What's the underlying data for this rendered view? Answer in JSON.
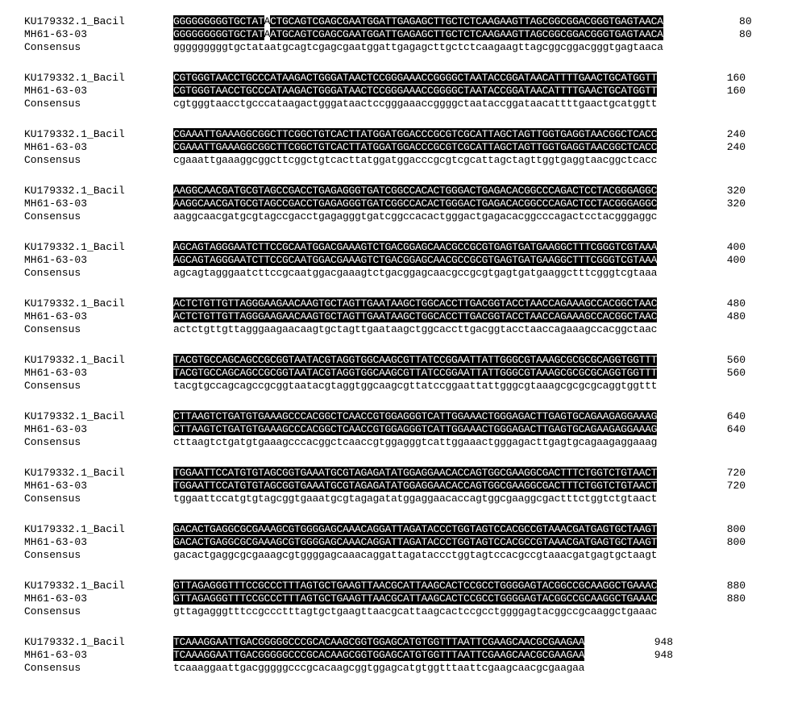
{
  "alignment": {
    "font_family": "Courier New",
    "font_size_pt": 10,
    "highlight_bg": "#000000",
    "highlight_fg": "#ffffff",
    "normal_bg": "#ffffff",
    "normal_fg": "#000000",
    "label_a": "KU179332.1_Bacil",
    "label_b": "MH61-63-03",
    "label_consensus": "Consensus",
    "point_mutation_index": 15,
    "blocks": [
      {
        "end": 80,
        "seq_a": "GGGGGGGGGTGCTATACTGCAGTCGAGCGAATGGATTGAGAGCTTGCTCTCAAGAAGTTAGCGGCGGACGGGTGAGTAACA",
        "seq_b": "GGGGGGGGGTGCTATAATGCAGTCGAGCGAATGGATTGAGAGCTTGCTCTCAAGAAGTTAGCGGCGGACGGGTGAGTAACA",
        "cons": "gggggggggtgctataatgcagtcgagcgaatggattgagagcttgctctcaagaagttagcggcggacgggtgagtaaca",
        "mismatches": [
          15
        ]
      },
      {
        "end": 160,
        "seq_a": "CGTGGGTAACCTGCCCATAAGACTGGGATAACTCCGGGAAACCGGGGCTAATACCGGATAACATTTTGAACTGCATGGTT",
        "seq_b": "CGTGGGTAACCTGCCCATAAGACTGGGATAACTCCGGGAAACCGGGGCTAATACCGGATAACATTTTGAACTGCATGGTT",
        "cons": "cgtgggtaacctgcccataagactgggataactccgggaaaccggggctaataccggataacattttgaactgcatggtt",
        "mismatches": []
      },
      {
        "end": 240,
        "seq_a": "CGAAATTGAAAGGCGGCTTCGGCTGTCACTTATGGATGGACCCGCGTCGCATTAGCTAGTTGGTGAGGTAACGGCTCACC",
        "seq_b": "CGAAATTGAAAGGCGGCTTCGGCTGTCACTTATGGATGGACCCGCGTCGCATTAGCTAGTTGGTGAGGTAACGGCTCACC",
        "cons": "cgaaattgaaaggcggcttcggctgtcacttatggatggacccgcgtcgcattagctagttggtgaggtaacggctcacc",
        "mismatches": []
      },
      {
        "end": 320,
        "seq_a": "AAGGCAACGATGCGTAGCCGACCTGAGAGGGTGATCGGCCACACTGGGACTGAGACACGGCCCAGACTCCTACGGGAGGC",
        "seq_b": "AAGGCAACGATGCGTAGCCGACCTGAGAGGGTGATCGGCCACACTGGGACTGAGACACGGCCCAGACTCCTACGGGAGGC",
        "cons": "aaggcaacgatgcgtagccgacctgagagggtgatcggccacactgggactgagacacggcccagactcctacgggaggc",
        "mismatches": []
      },
      {
        "end": 400,
        "seq_a": "AGCAGTAGGGAATCTTCCGCAATGGACGAAAGTCTGACGGAGCAACGCCGCGTGAGTGATGAAGGCTTTCGGGTCGTAAA",
        "seq_b": "AGCAGTAGGGAATCTTCCGCAATGGACGAAAGTCTGACGGAGCAACGCCGCGTGAGTGATGAAGGCTTTCGGGTCGTAAA",
        "cons": "agcagtagggaatcttccgcaatggacgaaagtctgacggagcaacgccgcgtgagtgatgaaggctttcgggtcgtaaa",
        "mismatches": []
      },
      {
        "end": 480,
        "seq_a": "ACTCTGTTGTTAGGGAAGAACAAGTGCTAGTTGAATAAGCTGGCACCTTGACGGTACCTAACCAGAAAGCCACGGCTAAC",
        "seq_b": "ACTCTGTTGTTAGGGAAGAACAAGTGCTAGTTGAATAAGCTGGCACCTTGACGGTACCTAACCAGAAAGCCACGGCTAAC",
        "cons": "actctgttgttagggaagaacaagtgctagttgaataagctggcaccttgacggtacctaaccagaaagccacggctaac",
        "mismatches": []
      },
      {
        "end": 560,
        "seq_a": "TACGTGCCAGCAGCCGCGGTAATACGTAGGTGGCAAGCGTTATCCGGAATTATTGGGCGTAAAGCGCGCGCAGGTGGTTT",
        "seq_b": "TACGTGCCAGCAGCCGCGGTAATACGTAGGTGGCAAGCGTTATCCGGAATTATTGGGCGTAAAGCGCGCGCAGGTGGTTT",
        "cons": "tacgtgccagcagccgcggtaatacgtaggtggcaagcgttatccggaattattgggcgtaaagcgcgcgcaggtggttt",
        "mismatches": []
      },
      {
        "end": 640,
        "seq_a": "CTTAAGTCTGATGTGAAAGCCCACGGCTCAACCGTGGAGGGTCATTGGAAACTGGGAGACTTGAGTGCAGAAGAGGAAAG",
        "seq_b": "CTTAAGTCTGATGTGAAAGCCCACGGCTCAACCGTGGAGGGTCATTGGAAACTGGGAGACTTGAGTGCAGAAGAGGAAAG",
        "cons": "cttaagtctgatgtgaaagcccacggctcaaccgtggagggtcattggaaactgggagacttgagtgcagaagaggaaag",
        "mismatches": []
      },
      {
        "end": 720,
        "seq_a": "TGGAATTCCATGTGTAGCGGTGAAATGCGTAGAGATATGGAGGAACACCAGTGGCGAAGGCGACTTTCTGGTCTGTAACT",
        "seq_b": "TGGAATTCCATGTGTAGCGGTGAAATGCGTAGAGATATGGAGGAACACCAGTGGCGAAGGCGACTTTCTGGTCTGTAACT",
        "cons": "tggaattccatgtgtagcggtgaaatgcgtagagatatggaggaacaccagtggcgaaggcgactttctggtctgtaact",
        "mismatches": []
      },
      {
        "end": 800,
        "seq_a": "GACACTGAGGCGCGAAAGCGTGGGGAGCAAACAGGATTAGATACCCTGGTAGTCCACGCCGTAAACGATGAGTGCTAAGT",
        "seq_b": "GACACTGAGGCGCGAAAGCGTGGGGAGCAAACAGGATTAGATACCCTGGTAGTCCACGCCGTAAACGATGAGTGCTAAGT",
        "cons": "gacactgaggcgcgaaagcgtggggagcaaacaggattagataccctggtagtccacgccgtaaacgatgagtgctaagt",
        "mismatches": []
      },
      {
        "end": 880,
        "seq_a": "GTTAGAGGGTTTCCGCCCTTTAGTGCTGAAGTTAACGCATTAAGCACTCCGCCTGGGGAGTACGGCCGCAAGGCTGAAAC",
        "seq_b": "GTTAGAGGGTTTCCGCCCTTTAGTGCTGAAGTTAACGCATTAAGCACTCCGCCTGGGGAGTACGGCCGCAAGGCTGAAAC",
        "cons": "gttagagggtttccgccctttagtgctgaagttaacgcattaagcactccgcctggggagtacggccgcaaggctgaaac",
        "mismatches": []
      },
      {
        "end": 948,
        "seq_a": "TCAAAGGAATTGACGGGGGCCCGCACAAGCGGTGGAGCATGTGGTTTAATTCGAAGCAACGCGAAGAA",
        "seq_b": "TCAAAGGAATTGACGGGGGCCCGCACAAGCGGTGGAGCATGTGGTTTAATTCGAAGCAACGCGAAGAA",
        "cons": "tcaaaggaattgacgggggcccgcacaagcggtggagcatgtggtttaattcgaagcaacgcgaagaa",
        "mismatches": []
      }
    ]
  }
}
